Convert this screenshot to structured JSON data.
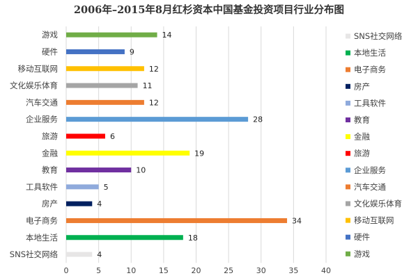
{
  "chart_data": {
    "type": "bar",
    "orientation": "horizontal",
    "title": "2006年–2015年8月红杉资本中国基金投资项目行业分布图",
    "xlabel": "",
    "ylabel": "",
    "xlim": [
      0,
      40
    ],
    "x_ticks": [
      0,
      5,
      10,
      15,
      20,
      25,
      30,
      35,
      40
    ],
    "grid": true,
    "legend_position": "right",
    "categories": [
      "游戏",
      "硬件",
      "移动互联网",
      "文化娱乐体育",
      "汽车交通",
      "企业服务",
      "旅游",
      "金融",
      "教育",
      "工具软件",
      "房产",
      "电子商务",
      "本地生活",
      "SNS社交网络"
    ],
    "values": [
      14,
      9,
      12,
      11,
      12,
      28,
      6,
      19,
      10,
      5,
      4,
      34,
      18,
      4
    ],
    "colors": [
      "#70ad47",
      "#4472c4",
      "#ffc000",
      "#a5a5a5",
      "#ed7d31",
      "#5b9bd5",
      "#ff0000",
      "#ffff00",
      "#7030a0",
      "#8faadc",
      "#002060",
      "#ed7d31",
      "#00b050",
      "#e7e6e6"
    ],
    "legend": [
      "SNS社交网络",
      "本地生活",
      "电子商务",
      "房产",
      "工具软件",
      "教育",
      "金融",
      "旅游",
      "企业服务",
      "汽车交通",
      "文化娱乐体育",
      "移动互联网",
      "硬件",
      "游戏"
    ],
    "legend_colors": [
      "#e7e6e6",
      "#00b050",
      "#ed7d31",
      "#002060",
      "#8faadc",
      "#7030a0",
      "#ffff00",
      "#ff0000",
      "#5b9bd5",
      "#ed7d31",
      "#a5a5a5",
      "#ffc000",
      "#4472c4",
      "#70ad47"
    ]
  }
}
